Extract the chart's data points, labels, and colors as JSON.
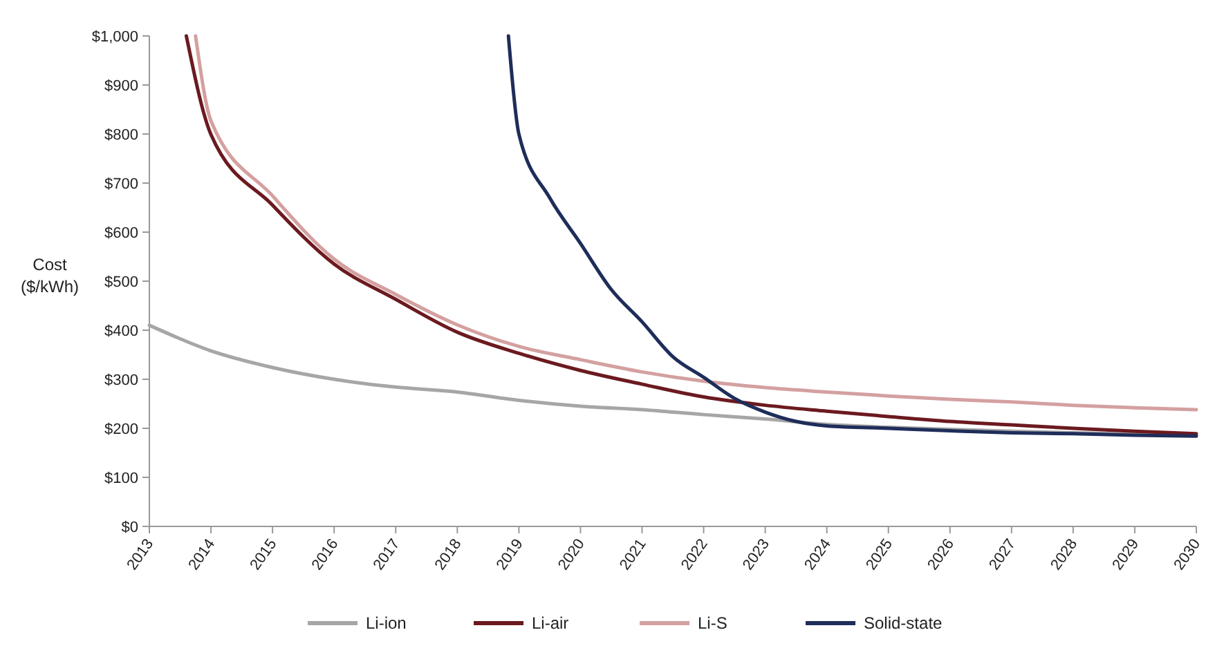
{
  "chart_data": {
    "type": "line",
    "ylabel": "Cost\n($/kWh)",
    "xlim": [
      2013,
      2030
    ],
    "xticks": [
      2013,
      2014,
      2015,
      2016,
      2017,
      2018,
      2019,
      2020,
      2021,
      2022,
      2023,
      2024,
      2025,
      2026,
      2027,
      2028,
      2029,
      2030
    ],
    "ylim": [
      0,
      1000
    ],
    "yticks": [
      {
        "value": 0,
        "label": "$0"
      },
      {
        "value": 100,
        "label": "$100"
      },
      {
        "value": 200,
        "label": "$200"
      },
      {
        "value": 300,
        "label": "$300"
      },
      {
        "value": 400,
        "label": "$400"
      },
      {
        "value": 500,
        "label": "$500"
      },
      {
        "value": 600,
        "label": "$600"
      },
      {
        "value": 700,
        "label": "$700"
      },
      {
        "value": 800,
        "label": "$800"
      },
      {
        "value": 900,
        "label": "$900"
      },
      {
        "value": 1000,
        "label": "$1,000"
      }
    ],
    "grid": false,
    "legend": "bottom",
    "marker": "none",
    "line_style": "solid",
    "series": [
      {
        "name": "Li-ion",
        "color": "#a6a6a6",
        "x": [
          2013,
          2014,
          2015,
          2016,
          2017,
          2018,
          2019,
          2020,
          2021,
          2022,
          2023,
          2024,
          2025,
          2026,
          2027,
          2028,
          2029,
          2030
        ],
        "values": [
          410,
          358,
          324,
          300,
          284,
          274,
          257,
          245,
          238,
          228,
          219,
          208,
          202,
          198,
          194,
          191,
          188,
          186
        ]
      },
      {
        "name": "Li-air",
        "color": "#6b1a1f",
        "x": [
          2013.6,
          2014,
          2015,
          2016,
          2017,
          2018,
          2019,
          2020,
          2021,
          2022,
          2023,
          2024,
          2025,
          2026,
          2027,
          2028,
          2029,
          2030
        ],
        "values": [
          1000,
          799,
          655,
          535,
          463,
          396,
          353,
          318,
          290,
          264,
          247,
          235,
          224,
          214,
          207,
          200,
          194,
          189
        ]
      },
      {
        "name": "Li-S",
        "color": "#d4a0a0",
        "x": [
          2013.75,
          2014,
          2015,
          2016,
          2017,
          2018,
          2019,
          2020,
          2021,
          2022,
          2023,
          2024,
          2025,
          2026,
          2027,
          2028,
          2029,
          2030
        ],
        "values": [
          1000,
          827,
          674,
          545,
          473,
          411,
          367,
          340,
          315,
          296,
          283,
          274,
          266,
          259,
          254,
          247,
          242,
          238
        ]
      },
      {
        "name": "Solid-state",
        "color": "#1f2d5a",
        "x": [
          2018.83,
          2019,
          2019.5,
          2020,
          2020.5,
          2021,
          2021.5,
          2022,
          2022.5,
          2023,
          2023.5,
          2024,
          2025,
          2026,
          2027,
          2028,
          2029,
          2030
        ],
        "values": [
          1000,
          800,
          670,
          577,
          483,
          417,
          346,
          304,
          261,
          233,
          214,
          205,
          200,
          195,
          191,
          189,
          186,
          184
        ]
      }
    ]
  }
}
